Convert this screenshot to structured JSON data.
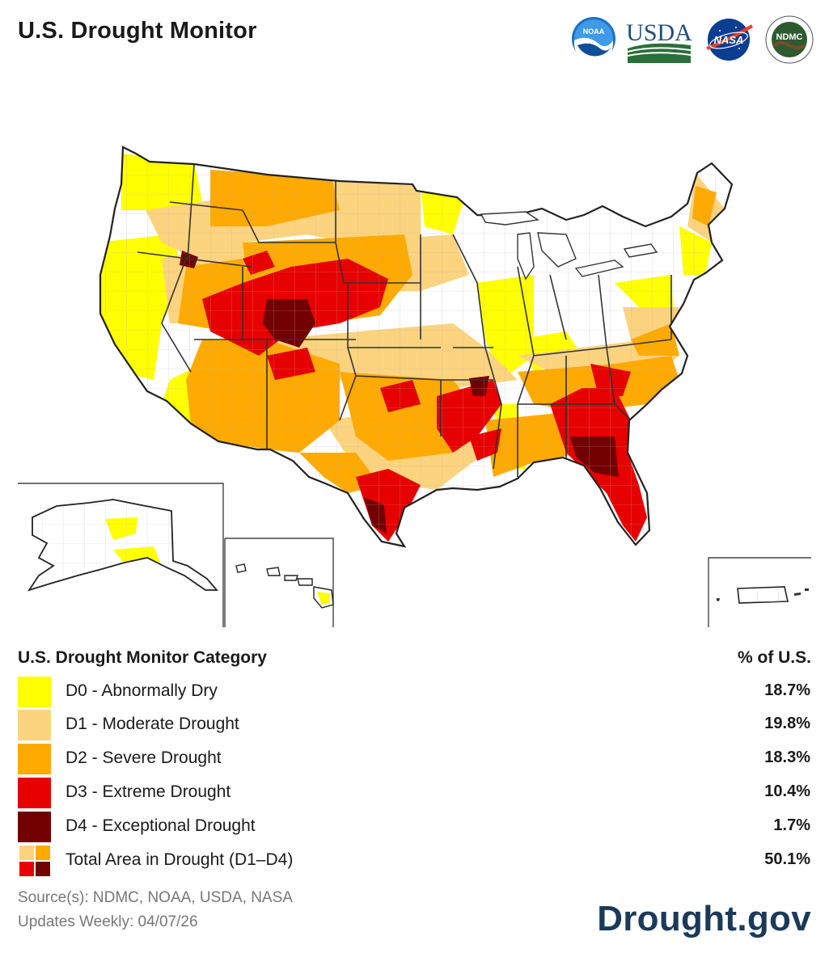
{
  "header": {
    "title": "U.S. Drought Monitor",
    "logos": [
      {
        "name": "noaa-logo",
        "text": "NOAA"
      },
      {
        "name": "usda-logo",
        "text": "USDA"
      },
      {
        "name": "nasa-logo",
        "text": "NASA"
      },
      {
        "name": "ndmc-logo",
        "text": "NDMC"
      }
    ]
  },
  "colors": {
    "none": "#ffffff",
    "D0": "#ffff00",
    "D1": "#fcd37f",
    "D2": "#ffaa00",
    "D3": "#e60000",
    "D4": "#730000",
    "brand": "#1b3a5a"
  },
  "legend": {
    "title": "U.S. Drought Monitor Category",
    "value_header": "% of U.S.",
    "items": [
      {
        "label": "D0 - Abnormally Dry",
        "value": "18.7%",
        "color": "#ffff00"
      },
      {
        "label": "D1 - Moderate Drought",
        "value": "19.8%",
        "color": "#fcd37f"
      },
      {
        "label": "D2 - Severe Drought",
        "value": "18.3%",
        "color": "#ffaa00"
      },
      {
        "label": "D3 - Extreme Drought",
        "value": "10.4%",
        "color": "#e60000"
      },
      {
        "label": "D4 - Exceptional Drought",
        "value": "1.7%",
        "color": "#730000"
      },
      {
        "label": "Total Area in Drought (D1–D4)",
        "value": "50.1%",
        "color": "multi"
      }
    ]
  },
  "footer": {
    "sources": "Source(s): NDMC, NOAA, USDA, NASA",
    "updated": "Updates Weekly: 04/07/26",
    "brand": "Drought.gov"
  }
}
